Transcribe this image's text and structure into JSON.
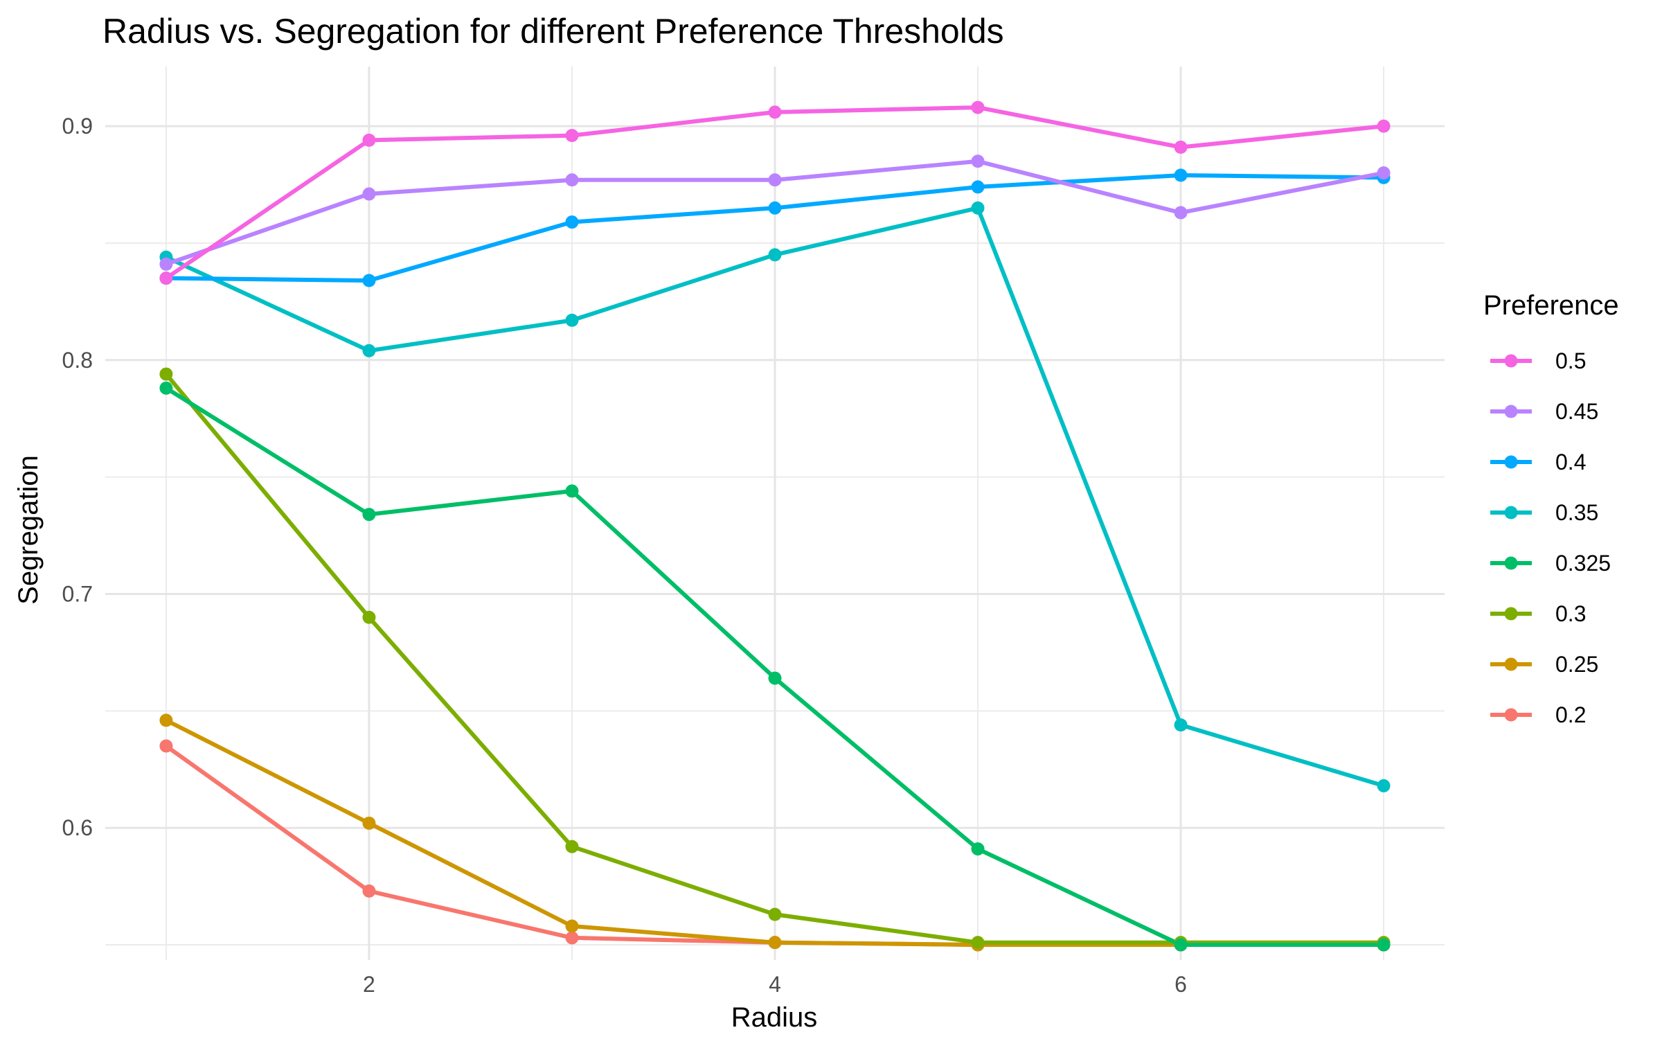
{
  "chart_data": {
    "type": "line",
    "title": "Radius vs. Segregation for different Preference Thresholds",
    "xlabel": "Radius",
    "ylabel": "Segregation",
    "x": [
      1,
      2,
      3,
      4,
      5,
      6,
      7
    ],
    "xticks": [
      "2",
      "4",
      "6"
    ],
    "yticks": [
      "0.6",
      "0.7",
      "0.8",
      "0.9"
    ],
    "xlim": [
      0.7,
      7.3
    ],
    "ylim": [
      0.5435,
      0.9255
    ],
    "grid": true,
    "legend": {
      "title": "Preference",
      "placement": "right"
    },
    "series": [
      {
        "name": "0.5",
        "color": "#F564E3",
        "values": [
          0.835,
          0.894,
          0.896,
          0.906,
          0.908,
          0.891,
          0.9
        ]
      },
      {
        "name": "0.45",
        "color": "#B983FF",
        "values": [
          0.841,
          0.871,
          0.877,
          0.877,
          0.885,
          0.863,
          0.88
        ]
      },
      {
        "name": "0.4",
        "color": "#00A9FF",
        "values": [
          0.835,
          0.834,
          0.859,
          0.865,
          0.874,
          0.879,
          0.878
        ]
      },
      {
        "name": "0.35",
        "color": "#00BFC4",
        "values": [
          0.844,
          0.804,
          0.817,
          0.845,
          0.865,
          0.644,
          0.618
        ]
      },
      {
        "name": "0.325",
        "color": "#00BE67",
        "values": [
          0.788,
          0.734,
          0.744,
          0.664,
          0.591,
          0.55,
          0.55
        ]
      },
      {
        "name": "0.3",
        "color": "#7CAE00",
        "values": [
          0.794,
          0.69,
          0.592,
          0.563,
          0.551,
          0.551,
          0.551
        ]
      },
      {
        "name": "0.25",
        "color": "#CD9600",
        "values": [
          0.646,
          0.602,
          0.558,
          0.551,
          0.55,
          0.55,
          0.55
        ]
      },
      {
        "name": "0.2",
        "color": "#F8766D",
        "values": [
          0.635,
          0.573,
          0.553,
          0.551,
          0.55,
          0.55,
          0.55
        ]
      }
    ]
  }
}
